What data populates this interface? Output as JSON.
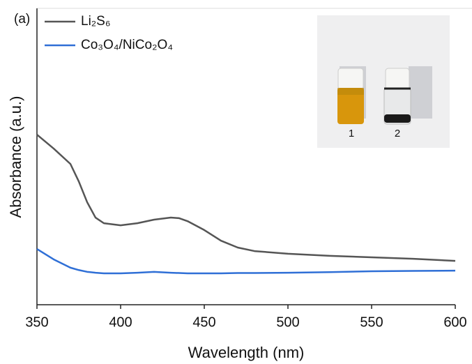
{
  "chart_data": {
    "type": "line",
    "panel_label": "(a)",
    "xlabel": "Wavelength (nm)",
    "ylabel": "Absorbance (a.u.)",
    "x": [
      350,
      360,
      370,
      375,
      380,
      385,
      390,
      400,
      410,
      420,
      430,
      435,
      440,
      450,
      460,
      470,
      480,
      500,
      525,
      550,
      575,
      600
    ],
    "series": [
      {
        "name": "Li₂S₆",
        "color": "#555555",
        "values": [
          0.574,
          0.527,
          0.475,
          0.416,
          0.346,
          0.294,
          0.275,
          0.268,
          0.275,
          0.287,
          0.294,
          0.292,
          0.282,
          0.252,
          0.216,
          0.193,
          0.181,
          0.172,
          0.165,
          0.16,
          0.155,
          0.148
        ]
      },
      {
        "name": "Co₃O₄/NiCo₂O₄",
        "color": "#2f6fd6",
        "values": [
          0.188,
          0.153,
          0.125,
          0.117,
          0.111,
          0.108,
          0.106,
          0.106,
          0.108,
          0.111,
          0.108,
          0.107,
          0.106,
          0.106,
          0.106,
          0.107,
          0.107,
          0.108,
          0.11,
          0.113,
          0.114,
          0.115
        ]
      }
    ],
    "xlim": [
      350,
      600
    ],
    "xticks": [
      350,
      400,
      450,
      500,
      550,
      600
    ],
    "ylim": [
      0,
      1
    ],
    "legend": "upper left",
    "inset_labels": [
      "1",
      "2"
    ]
  }
}
